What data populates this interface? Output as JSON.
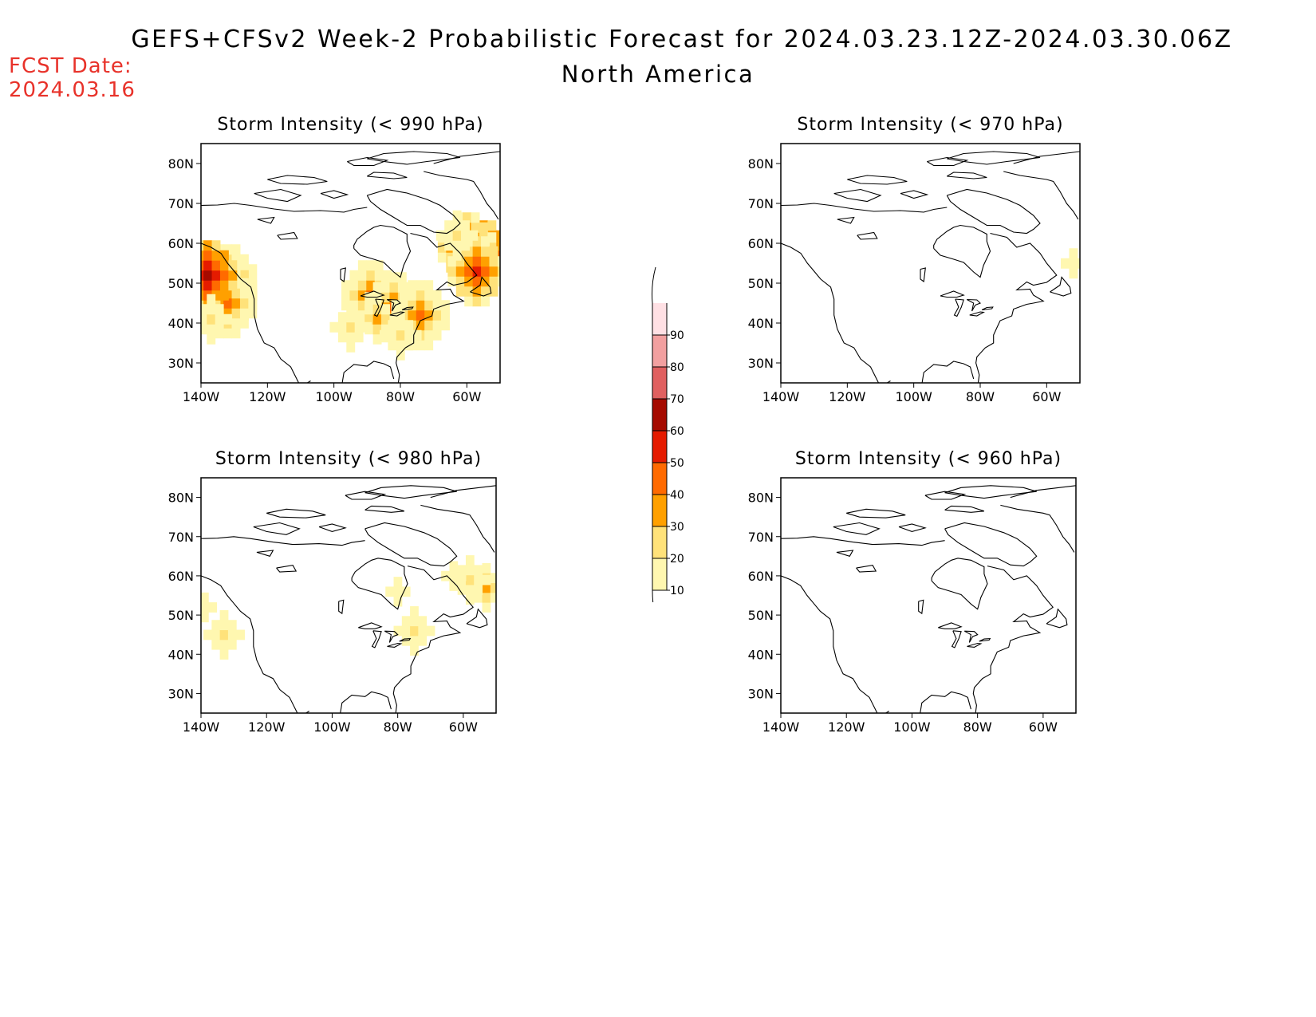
{
  "header": {
    "title": "GEFS+CFSv2 Week-2 Probabilistic Forecast for 2024.03.23.12Z-2024.03.30.06Z",
    "subtitle": "North America",
    "fcst_label": "FCST Date:",
    "fcst_date": "2024.03.16"
  },
  "axes": {
    "lat_ticks": [
      "80N",
      "70N",
      "60N",
      "50N",
      "40N",
      "30N"
    ],
    "lon_ticks": [
      "140W",
      "120W",
      "100W",
      "80W",
      "60W"
    ]
  },
  "legend": {
    "levels": [
      "10",
      "20",
      "30",
      "40",
      "50",
      "60",
      "70",
      "80",
      "90"
    ],
    "colors": [
      "#fff7b0",
      "#ffe27a",
      "#ffa000",
      "#ff6a00",
      "#e51b00",
      "#a50a00",
      "#e06060",
      "#f2a0a0",
      "#ffe0e4"
    ]
  },
  "chart_data": [
    {
      "type": "heatmap",
      "title": "Storm Intensity (< 990 hPa)",
      "lat_range": [
        25,
        85
      ],
      "lon_range": [
        -140,
        -50
      ],
      "regions": [
        {
          "lat": 51,
          "lon": -132,
          "probability": 40
        },
        {
          "lat": 47,
          "lon": -132,
          "probability": 50
        },
        {
          "lat": 45,
          "lon": -132,
          "probability": 40
        },
        {
          "lat": 52,
          "lon": -138,
          "probability": 60
        },
        {
          "lat": 41,
          "lon": -137,
          "probability": 20
        },
        {
          "lat": 47,
          "lon": -89,
          "probability": 40
        },
        {
          "lat": 44,
          "lon": -82,
          "probability": 40
        },
        {
          "lat": 41,
          "lon": -87,
          "probability": 30
        },
        {
          "lat": 42,
          "lon": -74,
          "probability": 40
        },
        {
          "lat": 39,
          "lon": -95,
          "probability": 20
        },
        {
          "lat": 37,
          "lon": -80,
          "probability": 20
        },
        {
          "lat": 57,
          "lon": -55,
          "probability": 60
        },
        {
          "lat": 59,
          "lon": -60,
          "probability": 50
        },
        {
          "lat": 53,
          "lon": -57,
          "probability": 50
        },
        {
          "lat": 62,
          "lon": -63,
          "probability": 20
        }
      ]
    },
    {
      "type": "heatmap",
      "title": "Storm Intensity (< 970 hPa)",
      "lat_range": [
        25,
        85
      ],
      "lon_range": [
        -140,
        -50
      ],
      "regions": [
        {
          "lat": 55,
          "lon": -52,
          "probability": 10
        }
      ]
    },
    {
      "type": "heatmap",
      "title": "Storm Intensity (< 980 hPa)",
      "lat_range": [
        25,
        85
      ],
      "lon_range": [
        -140,
        -50
      ],
      "regions": [
        {
          "lat": 57,
          "lon": -53,
          "probability": 30
        },
        {
          "lat": 59,
          "lon": -58,
          "probability": 20
        },
        {
          "lat": 60,
          "lon": -63,
          "probability": 10
        },
        {
          "lat": 46,
          "lon": -75,
          "probability": 20
        },
        {
          "lat": 52,
          "lon": -139,
          "probability": 10
        },
        {
          "lat": 45,
          "lon": -133,
          "probability": 20
        },
        {
          "lat": 56,
          "lon": -80,
          "probability": 10
        }
      ]
    },
    {
      "type": "heatmap",
      "title": "Storm Intensity (< 960 hPa)",
      "lat_range": [
        25,
        85
      ],
      "lon_range": [
        -140,
        -50
      ],
      "regions": []
    }
  ]
}
